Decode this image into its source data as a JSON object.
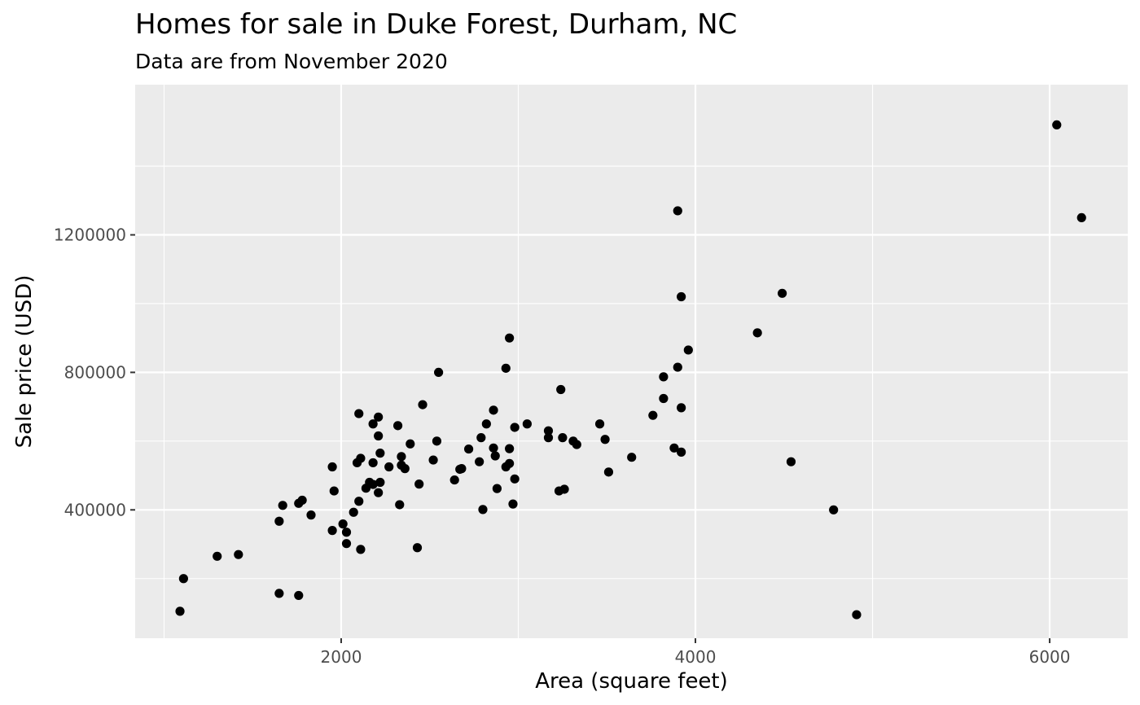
{
  "chart_data": {
    "type": "scatter",
    "title": "Homes for sale in Duke Forest, Durham, NC",
    "subtitle": "Data are from November 2020",
    "xlabel": "Area (square feet)",
    "ylabel": "Sale price (USD)",
    "xlim": [
      837,
      6441
    ],
    "ylim": [
      26500,
      1637000
    ],
    "x_ticks": [
      2000,
      4000,
      6000
    ],
    "y_ticks": [
      400000,
      800000,
      1200000
    ],
    "x_tick_labels": [
      "2000",
      "4000",
      "6000"
    ],
    "y_tick_labels": [
      "400000",
      "800000",
      "1200000"
    ],
    "grid": true,
    "legend": "none",
    "colors": {
      "panel": "#ebebeb",
      "grid": "#ffffff",
      "point": "#000000",
      "tick": "#333333"
    },
    "points": [
      [
        6040,
        1520000
      ],
      [
        6180,
        1250000
      ],
      [
        3900,
        1270000
      ],
      [
        3920,
        1020000
      ],
      [
        4490,
        1030000
      ],
      [
        4350,
        915000
      ],
      [
        3960,
        865000
      ],
      [
        3900,
        815000
      ],
      [
        3820,
        787000
      ],
      [
        3820,
        724000
      ],
      [
        3920,
        697000
      ],
      [
        3760,
        675000
      ],
      [
        3880,
        580000
      ],
      [
        3920,
        568000
      ],
      [
        4540,
        540000
      ],
      [
        4780,
        400000
      ],
      [
        4910,
        95000
      ],
      [
        3640,
        553000
      ],
      [
        3490,
        605000
      ],
      [
        3510,
        510000
      ],
      [
        3460,
        650000
      ],
      [
        3240,
        750000
      ],
      [
        3250,
        610000
      ],
      [
        3310,
        600000
      ],
      [
        3330,
        590000
      ],
      [
        3170,
        630000
      ],
      [
        3170,
        610000
      ],
      [
        3230,
        455000
      ],
      [
        3260,
        460000
      ],
      [
        3050,
        650000
      ],
      [
        2980,
        640000
      ],
      [
        2950,
        900000
      ],
      [
        2930,
        812000
      ],
      [
        2950,
        578000
      ],
      [
        2950,
        535000
      ],
      [
        2930,
        525000
      ],
      [
        2980,
        490000
      ],
      [
        2970,
        417000
      ],
      [
        2860,
        690000
      ],
      [
        2820,
        650000
      ],
      [
        2790,
        610000
      ],
      [
        2780,
        540000
      ],
      [
        2860,
        580000
      ],
      [
        2870,
        557000
      ],
      [
        2880,
        462000
      ],
      [
        2800,
        401000
      ],
      [
        2720,
        577000
      ],
      [
        2680,
        520000
      ],
      [
        2670,
        518000
      ],
      [
        2640,
        487000
      ],
      [
        2550,
        800000
      ],
      [
        2460,
        706000
      ],
      [
        2540,
        600000
      ],
      [
        2520,
        545000
      ],
      [
        2440,
        475000
      ],
      [
        2430,
        290000
      ],
      [
        2390,
        592000
      ],
      [
        2340,
        555000
      ],
      [
        2340,
        530000
      ],
      [
        2360,
        520000
      ],
      [
        2320,
        645000
      ],
      [
        2330,
        415000
      ],
      [
        2210,
        670000
      ],
      [
        2210,
        615000
      ],
      [
        2220,
        565000
      ],
      [
        2180,
        650000
      ],
      [
        2180,
        537000
      ],
      [
        2160,
        480000
      ],
      [
        2180,
        474000
      ],
      [
        2220,
        480000
      ],
      [
        2210,
        450000
      ],
      [
        2270,
        525000
      ],
      [
        2140,
        463000
      ],
      [
        2100,
        680000
      ],
      [
        2110,
        550000
      ],
      [
        2090,
        537000
      ],
      [
        2100,
        425000
      ],
      [
        2070,
        393000
      ],
      [
        2110,
        285000
      ],
      [
        2010,
        359000
      ],
      [
        2030,
        335000
      ],
      [
        2030,
        302000
      ],
      [
        1950,
        340000
      ],
      [
        1950,
        525000
      ],
      [
        1960,
        455000
      ],
      [
        1830,
        385000
      ],
      [
        1780,
        428000
      ],
      [
        1760,
        419000
      ],
      [
        1670,
        413000
      ],
      [
        1650,
        367000
      ],
      [
        1650,
        157000
      ],
      [
        1760,
        151000
      ],
      [
        1420,
        270000
      ],
      [
        1300,
        265000
      ],
      [
        1110,
        200000
      ],
      [
        1090,
        105000
      ]
    ]
  }
}
